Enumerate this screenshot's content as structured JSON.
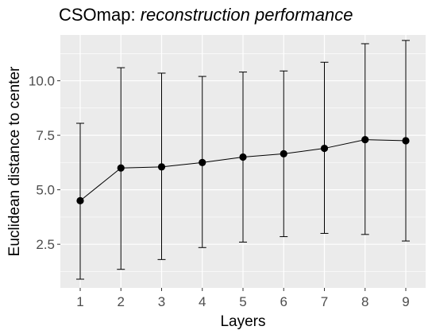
{
  "chart_data": {
    "type": "line",
    "title": "CSOmap: ",
    "title_italic": "reconstruction performance",
    "xlabel": "Layers",
    "ylabel": "Euclidean distance to center",
    "categories": [
      "1",
      "2",
      "3",
      "4",
      "5",
      "6",
      "7",
      "8",
      "9"
    ],
    "y_ticks": [
      "2.5",
      "5.0",
      "7.5",
      "10.0"
    ],
    "ylim": [
      0.5,
      12.1
    ],
    "grid": true,
    "series": [
      {
        "values": [
          4.5,
          6.0,
          6.05,
          6.25,
          6.5,
          6.65,
          6.9,
          7.3,
          7.25
        ],
        "error_lower": [
          0.9,
          1.35,
          1.8,
          2.35,
          2.6,
          2.85,
          3.0,
          2.95,
          2.65
        ],
        "error_upper": [
          8.05,
          10.6,
          10.35,
          10.2,
          10.4,
          10.45,
          10.85,
          11.7,
          11.85
        ]
      }
    ],
    "colors": {
      "panel": "#ebebeb",
      "grid": "#ffffff",
      "line": "#000000",
      "point": "#000000"
    }
  }
}
